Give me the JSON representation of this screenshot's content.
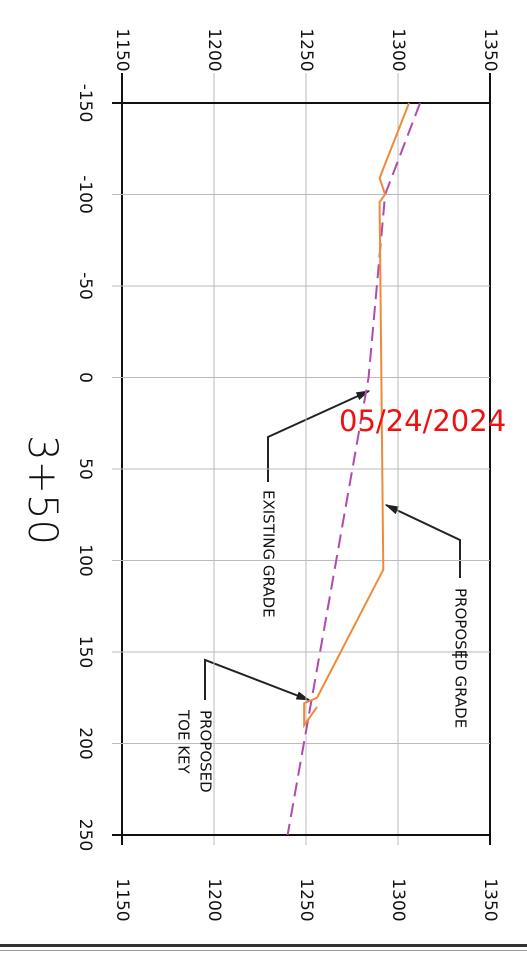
{
  "chart_data": {
    "type": "line",
    "title": "3+50",
    "stamp": "05/24/2024",
    "stamp_color": "#ee1111",
    "xlim": [
      -150,
      250
    ],
    "xticks": [
      -150,
      -100,
      -50,
      0,
      50,
      100,
      150,
      200,
      250
    ],
    "ylim": [
      1150,
      1350
    ],
    "yticks": [
      1150,
      1200,
      1250,
      1300,
      1350
    ],
    "grid": true,
    "series": [
      {
        "color": "#b04ab0",
        "dash": true,
        "x": [
          -150,
          -100,
          0,
          165,
          250
        ],
        "values": [
          1312,
          1293,
          1284,
          1255,
          1240
        ]
      },
      {
        "color": "#f08a3a",
        "dash": false,
        "x": [
          -150,
          -109,
          -100,
          -96,
          105,
          175,
          178,
          190,
          180
        ],
        "values": [
          1306,
          1290,
          1293,
          1290,
          1292,
          1256,
          1249,
          1249,
          1256
        ]
      }
    ],
    "annotations": [
      {
        "lines": [
          "EXISTING GRADE"
        ]
      },
      {
        "lines": [
          "PROPOSED GRADE"
        ]
      },
      {
        "lines": [
          "PROPOSED",
          "TOE KEY"
        ]
      }
    ]
  }
}
